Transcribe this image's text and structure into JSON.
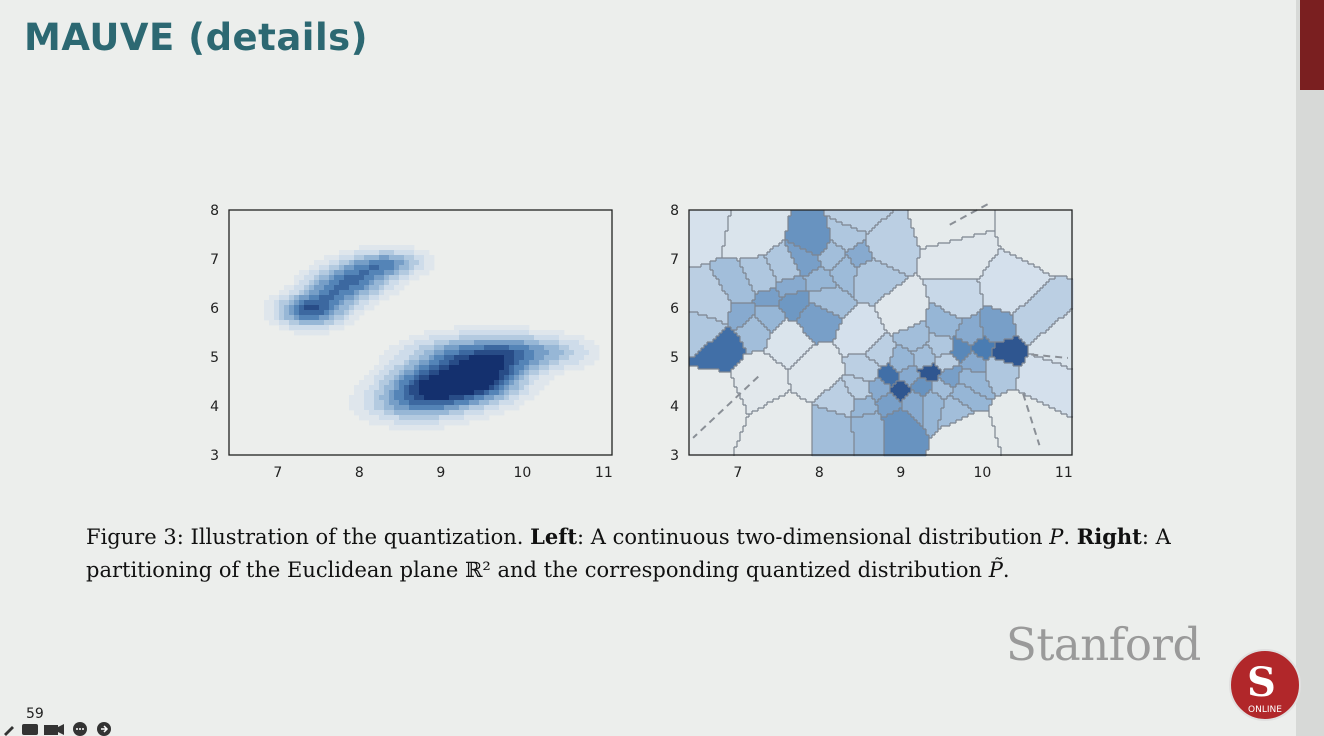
{
  "slide": {
    "title": "MAUVE (details)",
    "page_number": "59",
    "brand": "Stanford",
    "seal_letter": "S",
    "seal_text": "ONLINE"
  },
  "caption": {
    "fig": "Figure 3:",
    "t1": "Illustration of the quantization.",
    "left_label": "Left",
    "t2": ": A continuous two-dimensional distribution",
    "p": "P",
    "t3": ".",
    "right_label": "Right",
    "t4": ": A partitioning of the Euclidean plane ℝ² and the corresponding quantized distribution",
    "ptilde": "P̃",
    "t5": "."
  },
  "colors": {
    "title": "#2c6872",
    "blue_dark": "#1e3f78",
    "blue_mid": "#4f82b5",
    "blue_light": "#c6d7e8",
    "accent": "#7a1f20"
  },
  "chart_data": [
    {
      "type": "heatmap",
      "subtype": "density contour",
      "title": "",
      "xlabel": "",
      "ylabel": "",
      "xlim": [
        6.4,
        11.1
      ],
      "ylim": [
        3,
        8
      ],
      "xticks": [
        7,
        8,
        9,
        10,
        11
      ],
      "yticks": [
        3,
        4,
        5,
        6,
        7,
        8
      ],
      "components": [
        {
          "cx": 7.35,
          "cy": 5.95,
          "sx": 0.22,
          "sy": 0.2,
          "w": 1.0
        },
        {
          "cx": 7.65,
          "cy": 6.25,
          "sx": 0.22,
          "sy": 0.28,
          "w": 0.7
        },
        {
          "cx": 7.95,
          "cy": 6.55,
          "sx": 0.25,
          "sy": 0.22,
          "w": 0.75
        },
        {
          "cx": 8.2,
          "cy": 6.85,
          "sx": 0.25,
          "sy": 0.18,
          "w": 0.65
        },
        {
          "cx": 8.5,
          "cy": 6.95,
          "sx": 0.22,
          "sy": 0.15,
          "w": 0.35
        },
        {
          "cx": 8.95,
          "cy": 4.4,
          "sx": 0.35,
          "sy": 0.3,
          "w": 1.45
        },
        {
          "cx": 9.5,
          "cy": 4.6,
          "sx": 0.3,
          "sy": 0.3,
          "w": 1.35
        },
        {
          "cx": 9.85,
          "cy": 5.05,
          "sx": 0.3,
          "sy": 0.25,
          "w": 0.75
        },
        {
          "cx": 9.25,
          "cy": 5.05,
          "sx": 0.4,
          "sy": 0.25,
          "w": 0.6
        },
        {
          "cx": 10.4,
          "cy": 5.1,
          "sx": 0.3,
          "sy": 0.2,
          "w": 0.35
        },
        {
          "cx": 8.6,
          "cy": 4.05,
          "sx": 0.35,
          "sy": 0.25,
          "w": 0.45
        }
      ]
    },
    {
      "type": "heatmap",
      "subtype": "voronoi quantization",
      "title": "",
      "xlabel": "",
      "ylabel": "",
      "xlim": [
        6.4,
        11.1
      ],
      "ylim": [
        3,
        8
      ],
      "xticks": [
        7,
        8,
        9,
        10,
        11
      ],
      "yticks": [
        3,
        4,
        5,
        6,
        7,
        8
      ],
      "cells": [
        {
          "x": 6.55,
          "y": 7.8,
          "v": 0.18
        },
        {
          "x": 7.2,
          "y": 7.6,
          "v": 0.15
        },
        {
          "x": 9.6,
          "y": 7.7,
          "v": 0.05
        },
        {
          "x": 10.7,
          "y": 7.6,
          "v": 0.05
        },
        {
          "x": 8.45,
          "y": 7.85,
          "v": 0.3
        },
        {
          "x": 7.95,
          "y": 7.3,
          "v": 0.6
        },
        {
          "x": 8.35,
          "y": 7.45,
          "v": 0.35
        },
        {
          "x": 8.75,
          "y": 7.25,
          "v": 0.3
        },
        {
          "x": 8.5,
          "y": 7.05,
          "v": 0.5
        },
        {
          "x": 8.15,
          "y": 7.05,
          "v": 0.4
        },
        {
          "x": 7.85,
          "y": 6.95,
          "v": 0.55
        },
        {
          "x": 8.3,
          "y": 6.8,
          "v": 0.42
        },
        {
          "x": 8.6,
          "y": 6.75,
          "v": 0.35
        },
        {
          "x": 7.6,
          "y": 6.75,
          "v": 0.35
        },
        {
          "x": 7.3,
          "y": 6.5,
          "v": 0.35
        },
        {
          "x": 7.65,
          "y": 6.45,
          "v": 0.5
        },
        {
          "x": 8.0,
          "y": 6.55,
          "v": 0.45
        },
        {
          "x": 7.05,
          "y": 6.3,
          "v": 0.4
        },
        {
          "x": 7.35,
          "y": 6.2,
          "v": 0.55
        },
        {
          "x": 7.7,
          "y": 6.15,
          "v": 0.58
        },
        {
          "x": 8.05,
          "y": 6.2,
          "v": 0.4
        },
        {
          "x": 6.75,
          "y": 6.0,
          "v": 0.3
        },
        {
          "x": 7.05,
          "y": 5.9,
          "v": 0.5
        },
        {
          "x": 7.35,
          "y": 5.85,
          "v": 0.45
        },
        {
          "x": 7.95,
          "y": 5.85,
          "v": 0.55
        },
        {
          "x": 7.2,
          "y": 5.6,
          "v": 0.4
        },
        {
          "x": 6.65,
          "y": 5.55,
          "v": 0.35
        },
        {
          "x": 6.8,
          "y": 5.25,
          "v": 0.75
        },
        {
          "x": 7.6,
          "y": 5.35,
          "v": 0.15
        },
        {
          "x": 7.25,
          "y": 4.6,
          "v": 0.08
        },
        {
          "x": 6.7,
          "y": 4.2,
          "v": 0.04
        },
        {
          "x": 8.0,
          "y": 4.7,
          "v": 0.12
        },
        {
          "x": 8.55,
          "y": 5.4,
          "v": 0.2
        },
        {
          "x": 9.05,
          "y": 5.8,
          "v": 0.1
        },
        {
          "x": 9.7,
          "y": 6.1,
          "v": 0.25
        },
        {
          "x": 10.3,
          "y": 6.35,
          "v": 0.2
        },
        {
          "x": 9.7,
          "y": 7.05,
          "v": 0.1
        },
        {
          "x": 10.65,
          "y": 5.7,
          "v": 0.3
        },
        {
          "x": 10.85,
          "y": 5.3,
          "v": 0.15
        },
        {
          "x": 10.7,
          "y": 4.6,
          "v": 0.2
        },
        {
          "x": 10.45,
          "y": 3.8,
          "v": 0.05
        },
        {
          "x": 7.6,
          "y": 3.6,
          "v": 0.04
        },
        {
          "x": 9.8,
          "y": 3.45,
          "v": 0.05
        },
        {
          "x": 9.15,
          "y": 5.4,
          "v": 0.4
        },
        {
          "x": 9.55,
          "y": 5.65,
          "v": 0.45
        },
        {
          "x": 9.85,
          "y": 5.45,
          "v": 0.5
        },
        {
          "x": 10.15,
          "y": 5.55,
          "v": 0.55
        },
        {
          "x": 9.5,
          "y": 5.2,
          "v": 0.35
        },
        {
          "x": 9.75,
          "y": 5.15,
          "v": 0.65
        },
        {
          "x": 10.0,
          "y": 5.15,
          "v": 0.7
        },
        {
          "x": 10.25,
          "y": 5.05,
          "v": 0.85
        },
        {
          "x": 9.9,
          "y": 4.9,
          "v": 0.5
        },
        {
          "x": 10.2,
          "y": 4.8,
          "v": 0.35
        },
        {
          "x": 8.75,
          "y": 5.05,
          "v": 0.3
        },
        {
          "x": 9.0,
          "y": 4.9,
          "v": 0.45
        },
        {
          "x": 9.3,
          "y": 4.95,
          "v": 0.4
        },
        {
          "x": 9.55,
          "y": 4.9,
          "v": 0.3
        },
        {
          "x": 8.6,
          "y": 4.75,
          "v": 0.3
        },
        {
          "x": 8.85,
          "y": 4.6,
          "v": 0.75
        },
        {
          "x": 9.1,
          "y": 4.6,
          "v": 0.5
        },
        {
          "x": 9.35,
          "y": 4.7,
          "v": 0.85
        },
        {
          "x": 9.6,
          "y": 4.6,
          "v": 0.55
        },
        {
          "x": 9.85,
          "y": 4.55,
          "v": 0.45
        },
        {
          "x": 8.75,
          "y": 4.35,
          "v": 0.5
        },
        {
          "x": 9.0,
          "y": 4.35,
          "v": 0.85
        },
        {
          "x": 9.25,
          "y": 4.4,
          "v": 0.6
        },
        {
          "x": 9.5,
          "y": 4.35,
          "v": 0.4
        },
        {
          "x": 9.75,
          "y": 4.25,
          "v": 0.45
        },
        {
          "x": 8.5,
          "y": 4.3,
          "v": 0.3
        },
        {
          "x": 8.55,
          "y": 4.0,
          "v": 0.45
        },
        {
          "x": 8.85,
          "y": 4.05,
          "v": 0.55
        },
        {
          "x": 9.15,
          "y": 4.1,
          "v": 0.5
        },
        {
          "x": 9.4,
          "y": 4.1,
          "v": 0.45
        },
        {
          "x": 9.65,
          "y": 4.0,
          "v": 0.4
        },
        {
          "x": 8.3,
          "y": 4.1,
          "v": 0.3
        },
        {
          "x": 8.2,
          "y": 3.6,
          "v": 0.4
        },
        {
          "x": 8.6,
          "y": 3.65,
          "v": 0.45
        },
        {
          "x": 8.95,
          "y": 3.7,
          "v": 0.6
        }
      ]
    }
  ]
}
